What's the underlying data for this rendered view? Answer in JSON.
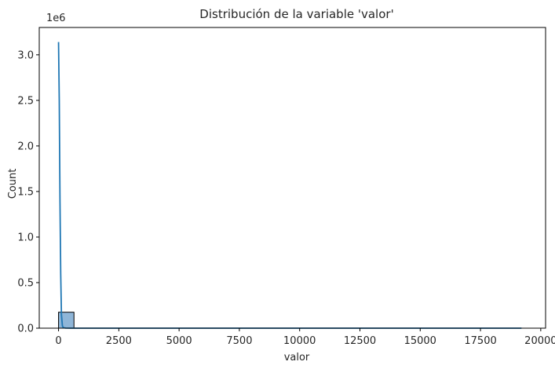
{
  "chart_data": {
    "type": "bar",
    "title": "Distribución de la variable 'valor'",
    "xlabel": "valor",
    "ylabel": "Count",
    "y_offset_label": "1e6",
    "xlim": [
      -800,
      20200
    ],
    "ylim": [
      0,
      3300000
    ],
    "x_ticks": [
      0,
      2500,
      5000,
      7500,
      10000,
      12500,
      15000,
      17500,
      20000
    ],
    "x_tick_labels": [
      "0",
      "2500",
      "5000",
      "7500",
      "10000",
      "12500",
      "15000",
      "17500",
      "20000"
    ],
    "y_ticks": [
      0,
      500000,
      1000000,
      1500000,
      2000000,
      2500000,
      3000000
    ],
    "y_tick_labels": [
      "0.0",
      "0.5",
      "1.0",
      "1.5",
      "2.0",
      "2.5",
      "3.0"
    ],
    "grid": false,
    "bars": [
      {
        "x0": 0,
        "x1": 640,
        "count": 175000
      },
      {
        "x0": 640,
        "x1": 1280,
        "count": 300
      },
      {
        "x0": 1280,
        "x1": 1920,
        "count": 80
      },
      {
        "x0": 1920,
        "x1": 2560,
        "count": 40
      },
      {
        "x0": 2560,
        "x1": 3200,
        "count": 20
      },
      {
        "x0": 3200,
        "x1": 3840,
        "count": 10
      },
      {
        "x0": 3840,
        "x1": 4480,
        "count": 8
      },
      {
        "x0": 4480,
        "x1": 5120,
        "count": 5
      },
      {
        "x0": 5120,
        "x1": 5760,
        "count": 4
      },
      {
        "x0": 5760,
        "x1": 6400,
        "count": 3
      },
      {
        "x0": 6400,
        "x1": 7040,
        "count": 2
      },
      {
        "x0": 7040,
        "x1": 7680,
        "count": 2
      },
      {
        "x0": 7680,
        "x1": 8320,
        "count": 1
      },
      {
        "x0": 8320,
        "x1": 8960,
        "count": 1
      },
      {
        "x0": 8960,
        "x1": 9600,
        "count": 1
      },
      {
        "x0": 9600,
        "x1": 10240,
        "count": 1
      },
      {
        "x0": 10240,
        "x1": 10880,
        "count": 1
      },
      {
        "x0": 10880,
        "x1": 11520,
        "count": 1
      },
      {
        "x0": 11520,
        "x1": 12160,
        "count": 1
      },
      {
        "x0": 12160,
        "x1": 12800,
        "count": 0
      },
      {
        "x0": 12800,
        "x1": 13440,
        "count": 0
      },
      {
        "x0": 13440,
        "x1": 14080,
        "count": 0
      },
      {
        "x0": 14080,
        "x1": 14720,
        "count": 0
      },
      {
        "x0": 14720,
        "x1": 15360,
        "count": 0
      },
      {
        "x0": 15360,
        "x1": 16000,
        "count": 0
      },
      {
        "x0": 16000,
        "x1": 16640,
        "count": 0
      },
      {
        "x0": 16640,
        "x1": 17280,
        "count": 0
      },
      {
        "x0": 17280,
        "x1": 17920,
        "count": 0
      },
      {
        "x0": 17920,
        "x1": 18560,
        "count": 0
      },
      {
        "x0": 18560,
        "x1": 19200,
        "count": 1
      }
    ],
    "kde": {
      "x": [
        0,
        30,
        60,
        90,
        120,
        160,
        200,
        300,
        500,
        1000,
        2000,
        5000,
        10000,
        15000,
        19200
      ],
      "y": [
        3140000,
        2500000,
        1400000,
        600000,
        150000,
        25000,
        5000,
        800,
        100,
        10,
        2,
        0,
        0,
        0,
        0
      ]
    },
    "colors": {
      "bar_fill": "#8fb6d8",
      "bar_edge": "#000000",
      "kde_line": "#1f77b4",
      "axis": "#000000"
    }
  }
}
